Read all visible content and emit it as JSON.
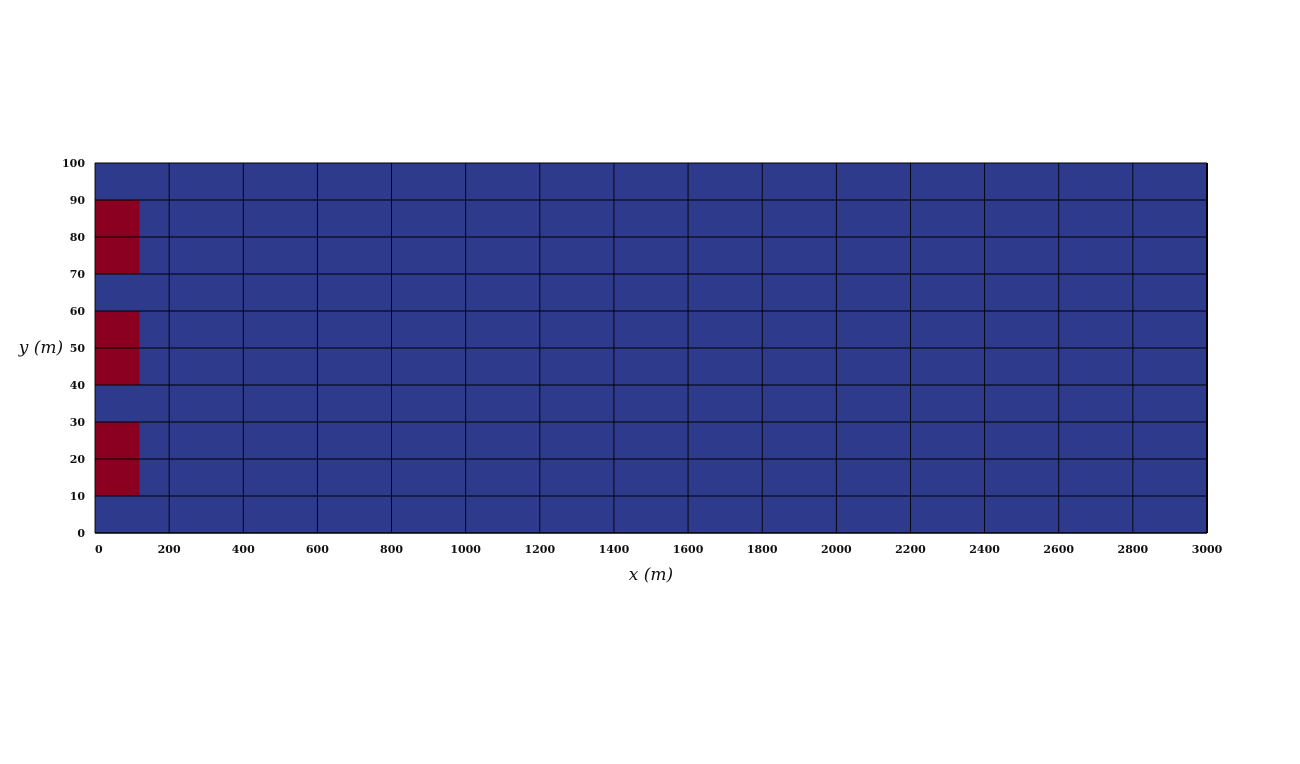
{
  "chart_data": {
    "type": "heatmap",
    "title": "",
    "xlabel": "x (m)",
    "ylabel": "y (m)",
    "xlim": [
      0,
      3000
    ],
    "ylim": [
      0,
      100
    ],
    "x_ticks": [
      0,
      200,
      400,
      600,
      800,
      1000,
      1200,
      1400,
      1600,
      1800,
      2000,
      2200,
      2400,
      2600,
      2800,
      3000
    ],
    "y_ticks": [
      0,
      10,
      20,
      30,
      40,
      50,
      60,
      70,
      80,
      90,
      100
    ],
    "grid": true,
    "grid_x_step": 200,
    "grid_y_step": 10,
    "background_color": "#2e3a8c",
    "grid_color": "#000000",
    "region_color": "#8b0020",
    "regions": [
      {
        "x": [
          0,
          120
        ],
        "y": [
          70,
          90
        ]
      },
      {
        "x": [
          0,
          120
        ],
        "y": [
          40,
          60
        ]
      },
      {
        "x": [
          0,
          120
        ],
        "y": [
          10,
          30
        ]
      }
    ]
  }
}
